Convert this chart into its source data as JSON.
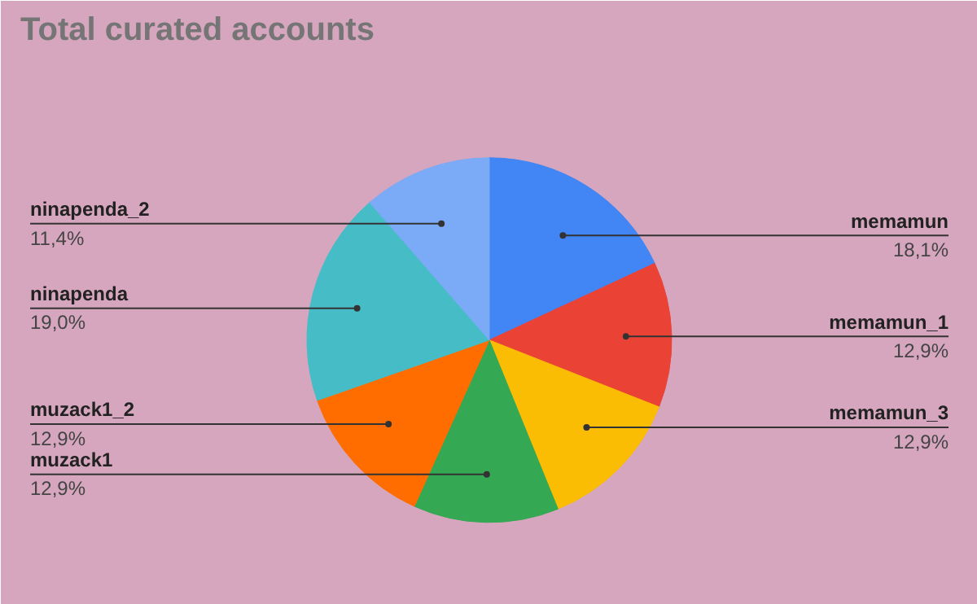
{
  "chart_data": {
    "type": "pie",
    "title": "Total curated accounts",
    "categories": [
      "memamun",
      "memamun_1",
      "memamun_3",
      "muzack1",
      "muzack1_2",
      "ninapenda",
      "ninapenda_2"
    ],
    "values": [
      18.1,
      12.9,
      12.9,
      12.9,
      12.9,
      19.0,
      11.4
    ],
    "colors": [
      "#4285f4",
      "#ea4335",
      "#fbbc04",
      "#34a853",
      "#ff6d01",
      "#46bdc6",
      "#7baaf7"
    ],
    "value_labels": [
      "18,1%",
      "12,9%",
      "12,9%",
      "12,9%",
      "12,9%",
      "19,0%",
      "11,4%"
    ]
  }
}
